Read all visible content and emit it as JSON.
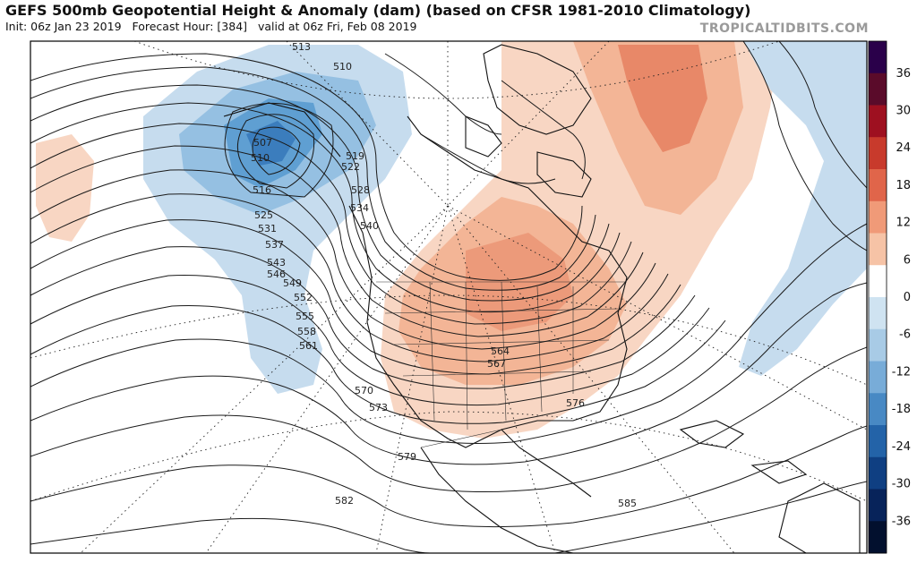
{
  "header": {
    "title": "GEFS 500mb Geopotential Height & Anomaly (dam) (based on CFSR 1981-2010 Climatology)",
    "init": "Init: 06z Jan 23 2019",
    "forecast_hour": "Forecast Hour: [384]",
    "valid": "valid at 06z Fri, Feb 08 2019"
  },
  "brand": "TROPICALTIDBITS.COM",
  "colorbar": {
    "labels": [
      "36",
      "30",
      "24",
      "18",
      "12",
      "6",
      "0",
      "-6",
      "-12",
      "-18",
      "-24",
      "-30",
      "-36"
    ],
    "colors": [
      "#2a004a",
      "#5a0b2a",
      "#9e1020",
      "#c83a2c",
      "#e0654a",
      "#f09a78",
      "#f6c3a6",
      "#ffffff",
      "#cfe3f1",
      "#a8cbe6",
      "#78acd8",
      "#4889c4",
      "#2363a8",
      "#0f3f82",
      "#07235a",
      "#02102e"
    ]
  },
  "contour_labels": [
    "513",
    "510",
    "507",
    "510",
    "516",
    "519",
    "522",
    "525",
    "528",
    "531",
    "534",
    "537",
    "540",
    "543",
    "546",
    "549",
    "552",
    "555",
    "558",
    "561",
    "564",
    "567",
    "570",
    "573",
    "576",
    "579",
    "582",
    "585"
  ]
}
